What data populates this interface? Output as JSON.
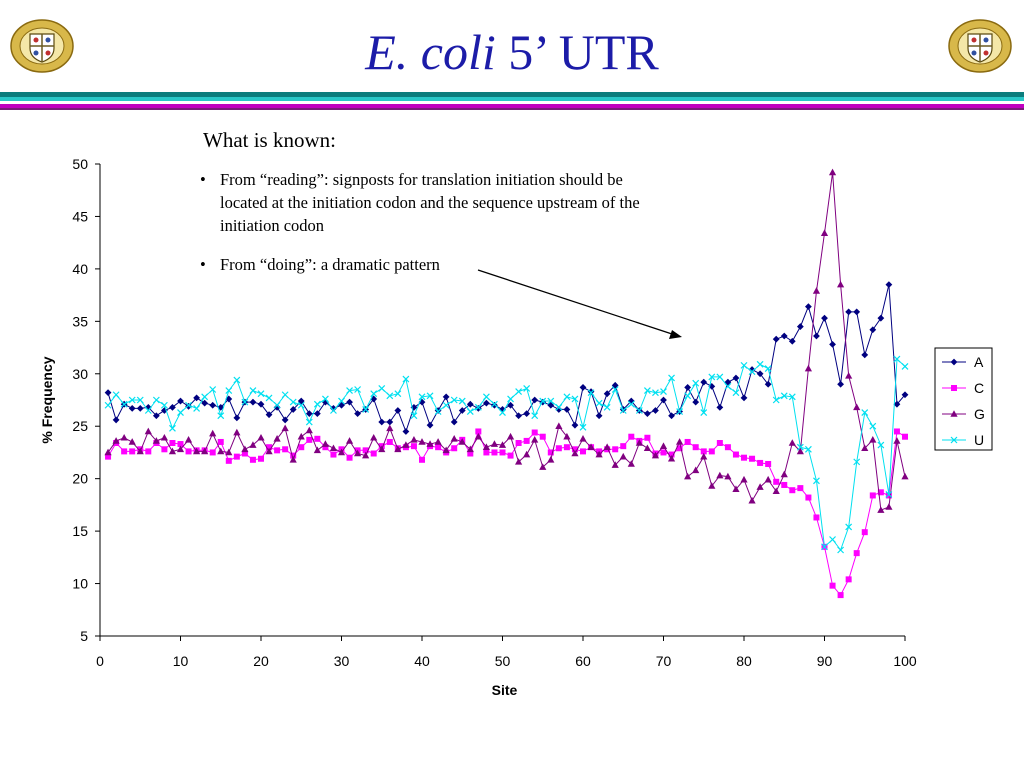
{
  "slide": {
    "title_italic": "E. coli",
    "title_rest": " 5’ UTR",
    "known_heading": "What is known:",
    "bullet_symbol": "•",
    "bullets": [
      "From “reading”: signposts for translation initiation should be located at the initiation codon and the sequence upstream of the initiation codon",
      "From “doing”: a dramatic pattern"
    ]
  },
  "colors": {
    "title": "#1c1ca8",
    "band_teal": "#0b7d7d",
    "band_cyan": "#28c8c8",
    "band_magenta": "#c000c0",
    "band_purple": "#7a1a7a"
  },
  "chart_data": {
    "type": "line",
    "xlabel": "Site",
    "ylabel": "% Frequency",
    "xlim": [
      0,
      100
    ],
    "ylim": [
      5,
      50
    ],
    "xticks": [
      0,
      10,
      20,
      30,
      40,
      50,
      60,
      70,
      80,
      90,
      100
    ],
    "yticks": [
      5,
      10,
      15,
      20,
      25,
      30,
      35,
      40,
      45,
      50
    ],
    "legend_position": "right",
    "x": [
      1,
      2,
      3,
      4,
      5,
      6,
      7,
      8,
      9,
      10,
      11,
      12,
      13,
      14,
      15,
      16,
      17,
      18,
      19,
      20,
      21,
      22,
      23,
      24,
      25,
      26,
      27,
      28,
      29,
      30,
      31,
      32,
      33,
      34,
      35,
      36,
      37,
      38,
      39,
      40,
      41,
      42,
      43,
      44,
      45,
      46,
      47,
      48,
      49,
      50,
      51,
      52,
      53,
      54,
      55,
      56,
      57,
      58,
      59,
      60,
      61,
      62,
      63,
      64,
      65,
      66,
      67,
      68,
      69,
      70,
      71,
      72,
      73,
      74,
      75,
      76,
      77,
      78,
      79,
      80,
      81,
      82,
      83,
      84,
      85,
      86,
      87,
      88,
      89,
      90,
      91,
      92,
      93,
      94,
      95,
      96,
      97,
      98,
      99,
      100
    ],
    "series": [
      {
        "name": "A",
        "color": "#000080",
        "marker": "diamond",
        "values": [
          28.2,
          25.6,
          27.1,
          26.7,
          26.7,
          26.8,
          26.0,
          26.5,
          26.8,
          27.4,
          26.9,
          27.7,
          27.2,
          27.0,
          26.8,
          27.6,
          25.8,
          27.3,
          27.3,
          27.1,
          26.1,
          26.8,
          25.6,
          26.6,
          27.4,
          26.2,
          26.2,
          27.3,
          26.7,
          27.0,
          27.3,
          26.2,
          26.6,
          27.6,
          25.4,
          25.4,
          26.5,
          24.5,
          26.8,
          27.3,
          25.1,
          26.5,
          27.8,
          25.4,
          26.5,
          27.1,
          26.7,
          27.2,
          27.0,
          26.6,
          27.0,
          26.0,
          26.2,
          27.5,
          27.3,
          27.0,
          26.6,
          26.6,
          25.1,
          28.7,
          28.3,
          26.0,
          28.1,
          28.9,
          26.6,
          27.4,
          26.5,
          26.2,
          26.5,
          27.5,
          26.0,
          26.4,
          28.7,
          27.3,
          29.2,
          28.8,
          26.8,
          29.2,
          29.6,
          27.7,
          30.4,
          30.0,
          29.0,
          33.3,
          33.6,
          33.1,
          34.5,
          36.4,
          33.6,
          35.3,
          32.8,
          29.0,
          35.9,
          35.9,
          31.8,
          34.2,
          35.3,
          38.5,
          27.1,
          28.0
        ]
      },
      {
        "name": "C",
        "color": "#ff00ff",
        "marker": "square",
        "values": [
          22.1,
          23.4,
          22.6,
          22.6,
          22.8,
          22.6,
          23.4,
          22.8,
          23.4,
          23.3,
          22.6,
          22.7,
          22.7,
          22.5,
          23.5,
          21.7,
          22.1,
          22.4,
          21.8,
          21.9,
          23.0,
          22.7,
          22.8,
          22.2,
          23.0,
          23.7,
          23.8,
          23.0,
          22.3,
          22.8,
          22.0,
          22.7,
          22.7,
          22.4,
          23.1,
          23.5,
          22.9,
          23.0,
          23.1,
          21.8,
          23.1,
          23.0,
          22.5,
          22.9,
          23.7,
          22.4,
          24.5,
          22.5,
          22.5,
          22.5,
          22.2,
          23.4,
          23.6,
          24.4,
          24.0,
          22.5,
          22.9,
          23.0,
          22.8,
          22.6,
          23.0,
          22.6,
          22.8,
          22.8,
          23.1,
          24.0,
          23.6,
          23.9,
          22.4,
          22.5,
          22.3,
          22.9,
          23.5,
          23.0,
          22.6,
          22.6,
          23.4,
          23.0,
          22.3,
          22.0,
          21.9,
          21.5,
          21.4,
          19.7,
          19.4,
          18.9,
          19.1,
          18.2,
          16.3,
          13.5,
          9.8,
          8.9,
          10.4,
          12.9,
          14.9,
          18.4,
          18.7,
          18.4,
          24.5,
          24.0
        ]
      },
      {
        "name": "G",
        "color": "#800080",
        "marker": "triangle",
        "values": [
          22.5,
          23.6,
          23.9,
          23.5,
          22.6,
          24.5,
          23.6,
          23.9,
          22.6,
          22.8,
          23.7,
          22.6,
          22.6,
          24.3,
          22.6,
          22.5,
          24.4,
          22.8,
          23.2,
          23.9,
          22.6,
          23.8,
          24.8,
          21.8,
          24.0,
          24.6,
          22.7,
          23.3,
          22.9,
          22.5,
          23.6,
          22.4,
          22.2,
          23.9,
          22.8,
          24.8,
          22.8,
          23.2,
          23.7,
          23.5,
          23.3,
          23.5,
          22.7,
          23.8,
          23.5,
          22.8,
          24.0,
          23.0,
          23.3,
          23.2,
          24.0,
          21.6,
          22.3,
          23.7,
          21.1,
          21.8,
          25.0,
          24.0,
          22.4,
          23.8,
          23.0,
          22.3,
          23.0,
          21.3,
          22.1,
          21.4,
          23.4,
          22.9,
          22.2,
          23.1,
          21.9,
          23.5,
          20.2,
          20.8,
          22.1,
          19.3,
          20.3,
          20.2,
          19.0,
          19.9,
          17.9,
          19.2,
          19.9,
          18.8,
          20.4,
          23.4,
          22.6,
          30.5,
          37.9,
          43.4,
          49.2,
          38.5,
          29.8,
          26.8,
          22.9,
          23.7,
          17.0,
          17.3,
          23.6,
          20.2
        ]
      },
      {
        "name": "U",
        "color": "#00e0f0",
        "marker": "x",
        "values": [
          27.0,
          28.0,
          27.1,
          27.5,
          27.5,
          26.5,
          27.5,
          27.0,
          24.8,
          26.3,
          27.0,
          26.7,
          27.8,
          28.5,
          26.0,
          28.4,
          29.4,
          27.3,
          28.4,
          28.1,
          27.7,
          27.0,
          28.0,
          27.3,
          27.0,
          25.4,
          27.1,
          27.6,
          26.5,
          27.4,
          28.4,
          28.5,
          26.6,
          28.1,
          28.6,
          27.9,
          28.1,
          29.5,
          26.0,
          27.8,
          27.9,
          26.4,
          27.0,
          27.5,
          27.4,
          26.4,
          26.8,
          27.8,
          27.1,
          26.3,
          27.6,
          28.3,
          28.6,
          26.0,
          27.4,
          27.4,
          26.8,
          27.8,
          27.6,
          24.9,
          28.2,
          27.2,
          26.8,
          28.5,
          26.5,
          27.1,
          26.5,
          28.4,
          28.2,
          28.3,
          29.6,
          26.4,
          27.9,
          29.1,
          26.3,
          29.7,
          29.7,
          28.8,
          28.2,
          30.8,
          30.2,
          30.9,
          30.5,
          27.5,
          27.9,
          27.8,
          23.0,
          22.8,
          19.8,
          13.5,
          14.2,
          13.2,
          15.4,
          21.6,
          26.3,
          25.0,
          23.2,
          18.5,
          31.4,
          30.7
        ]
      }
    ],
    "annotations": [
      {
        "type": "arrow",
        "from_text": "From “doing”: a dramatic pattern",
        "to": [
          72,
          35.3
        ]
      }
    ]
  }
}
